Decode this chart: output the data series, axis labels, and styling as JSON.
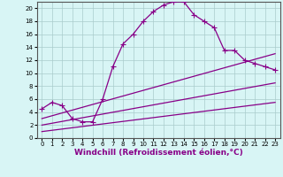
{
  "xlabel": "Windchill (Refroidissement éolien,°C)",
  "background_color": "#d8f5f5",
  "line_color": "#880088",
  "grid_color": "#aacccc",
  "xlim": [
    -0.5,
    23.5
  ],
  "ylim": [
    0,
    21
  ],
  "xticks": [
    0,
    1,
    2,
    3,
    4,
    5,
    6,
    7,
    8,
    9,
    10,
    11,
    12,
    13,
    14,
    15,
    16,
    17,
    18,
    19,
    20,
    21,
    22,
    23
  ],
  "yticks": [
    0,
    2,
    4,
    6,
    8,
    10,
    12,
    14,
    16,
    18,
    20
  ],
  "main_x": [
    0,
    1,
    2,
    3,
    4,
    5,
    6,
    7,
    8,
    9,
    10,
    11,
    12,
    13,
    14,
    15,
    16,
    17,
    18,
    19,
    20,
    21,
    22,
    23
  ],
  "main_y": [
    4.5,
    5.5,
    5.0,
    3.0,
    2.5,
    2.5,
    6.0,
    11.0,
    14.5,
    16.0,
    18.0,
    19.5,
    20.5,
    21.0,
    21.0,
    19.0,
    18.0,
    17.0,
    13.5,
    13.5,
    12.0,
    11.5,
    11.0,
    10.5
  ],
  "line2_x": [
    0,
    23
  ],
  "line2_y": [
    3.0,
    13.0
  ],
  "line3_x": [
    0,
    23
  ],
  "line3_y": [
    2.0,
    8.5
  ],
  "line4_x": [
    0,
    23
  ],
  "line4_y": [
    1.0,
    5.5
  ],
  "marker": "+",
  "markersize": 4,
  "linewidth": 0.9,
  "tick_fontsize": 5.0,
  "xlabel_fontsize": 6.5
}
